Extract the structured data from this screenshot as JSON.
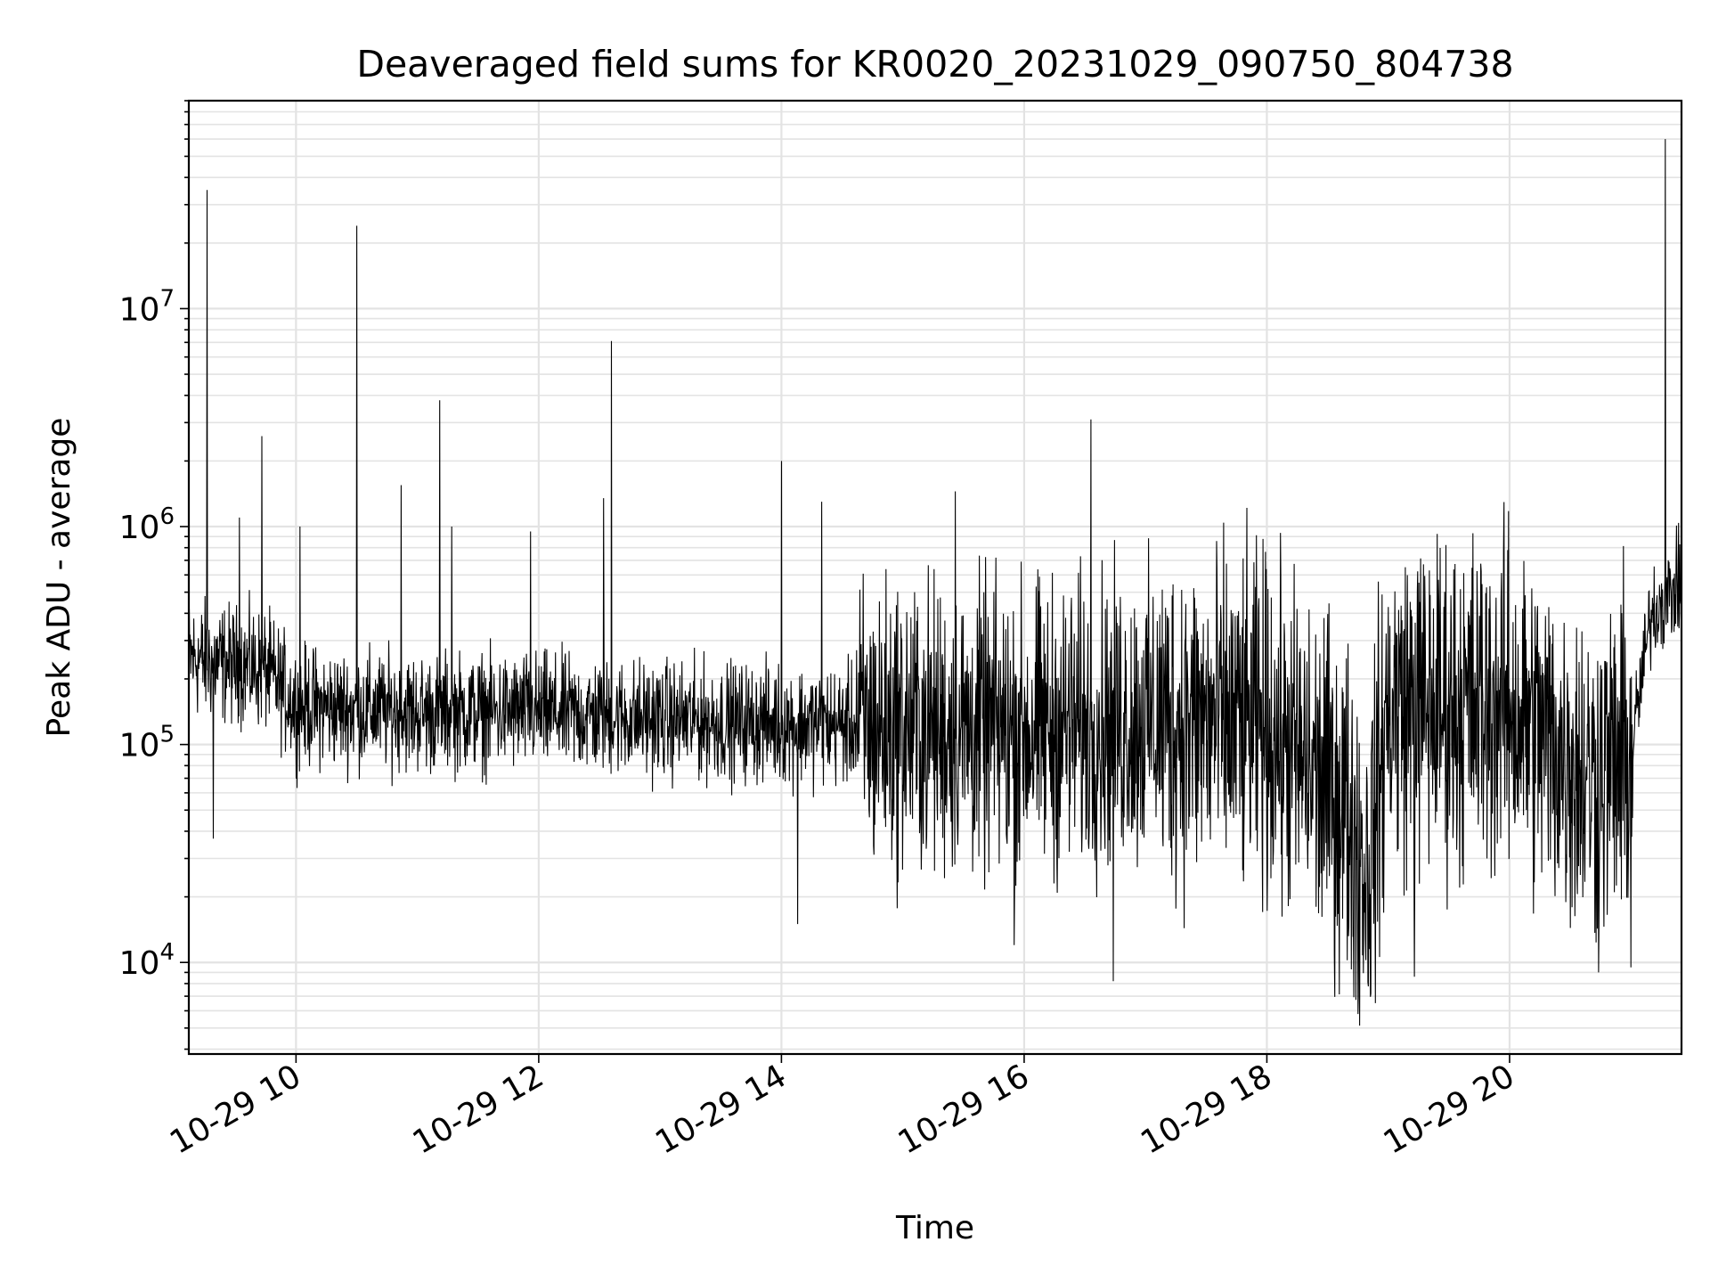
{
  "chart_data": {
    "type": "line",
    "title": "Deaveraged field sums for KR0020_20231029_090750_804738",
    "xlabel": "Time",
    "ylabel": "Peak ADU - average",
    "yscale": "log",
    "ylim": [
      3800,
      90000000
    ],
    "xlim": [
      "2023-10-29 09:07",
      "2023-10-29 21:25"
    ],
    "grid": true,
    "x_ticks": [
      "2023-10-29 10:00",
      "2023-10-29 12:00",
      "2023-10-29 14:00",
      "2023-10-29 16:00",
      "2023-10-29 18:00",
      "2023-10-29 20:00"
    ],
    "x_tick_labels": [
      "10-29 10",
      "10-29 12",
      "10-29 14",
      "10-29 16",
      "10-29 18",
      "10-29 20"
    ],
    "y_ticks": [
      {
        "base": "10",
        "exp": "4",
        "value": 10000
      },
      {
        "base": "10",
        "exp": "5",
        "value": 100000
      },
      {
        "base": "10",
        "exp": "6",
        "value": 1000000
      },
      {
        "base": "10",
        "exp": "7",
        "value": 10000000
      }
    ],
    "series": [
      {
        "color": "#000000",
        "baseline": [
          [
            "2023-10-29 09:07",
            250000
          ],
          [
            "2023-10-29 09:45",
            220000
          ],
          [
            "2023-10-29 10:00",
            150000
          ],
          [
            "2023-10-29 11:00",
            140000
          ],
          [
            "2023-10-29 12:00",
            140000
          ],
          [
            "2023-10-29 13:00",
            130000
          ],
          [
            "2023-10-29 14:00",
            125000
          ],
          [
            "2023-10-29 15:00",
            120000
          ],
          [
            "2023-10-29 16:00",
            115000
          ],
          [
            "2023-10-29 17:00",
            130000
          ],
          [
            "2023-10-29 18:00",
            120000
          ],
          [
            "2023-10-29 18:40",
            50000
          ],
          [
            "2023-10-29 18:50",
            25000
          ],
          [
            "2023-10-29 19:00",
            150000
          ],
          [
            "2023-10-29 20:00",
            150000
          ],
          [
            "2023-10-29 20:40",
            70000
          ],
          [
            "2023-10-29 21:00",
            90000
          ],
          [
            "2023-10-29 21:10",
            400000
          ],
          [
            "2023-10-29 21:25",
            550000
          ]
        ],
        "spikes": [
          [
            "2023-10-29 09:16",
            35000000
          ],
          [
            "2023-10-29 09:43",
            2600000
          ],
          [
            "2023-10-29 09:32",
            1100000
          ],
          [
            "2023-10-29 10:02",
            1000000
          ],
          [
            "2023-10-29 10:30",
            24000000
          ],
          [
            "2023-10-29 10:52",
            1550000
          ],
          [
            "2023-10-29 11:11",
            3800000
          ],
          [
            "2023-10-29 11:17",
            1000000
          ],
          [
            "2023-10-29 11:56",
            950000
          ],
          [
            "2023-10-29 12:32",
            1350000
          ],
          [
            "2023-10-29 12:36",
            7100000
          ],
          [
            "2023-10-29 14:00",
            2000000
          ],
          [
            "2023-10-29 14:20",
            1300000
          ],
          [
            "2023-10-29 15:26",
            1450000
          ],
          [
            "2023-10-29 16:33",
            3100000
          ],
          [
            "2023-10-29 21:17",
            60000000
          ]
        ],
        "dips": [
          [
            "2023-10-29 09:19",
            37000
          ],
          [
            "2023-10-29 14:08",
            15000
          ],
          [
            "2023-10-29 15:55",
            12000
          ],
          [
            "2023-10-29 16:44",
            8200
          ],
          [
            "2023-10-29 18:45",
            5800
          ],
          [
            "2023-10-29 19:13",
            8600
          ],
          [
            "2023-10-29 20:44",
            9000
          ],
          [
            "2023-10-29 21:00",
            9500
          ]
        ]
      }
    ]
  }
}
